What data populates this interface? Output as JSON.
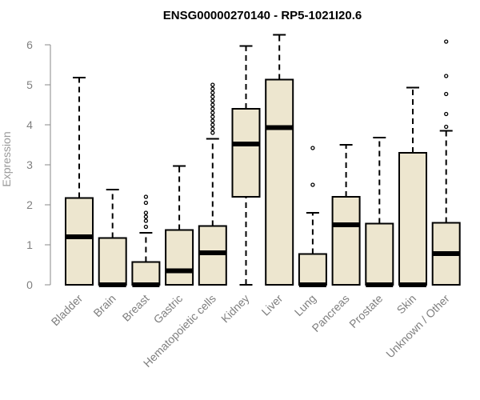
{
  "chart_data": {
    "type": "box",
    "title": "ENSG00000270140 - RP5-1021I20.6",
    "xlabel": "",
    "ylabel": "Expression",
    "ylim": [
      0,
      6.25
    ],
    "yticks": [
      0,
      1,
      2,
      3,
      4,
      5,
      6
    ],
    "grid": false,
    "legend": "none",
    "colors": {
      "box_fill": "#ede6cf",
      "stroke": "#000000",
      "axis": "#8a8a8a",
      "ticks": "#7f7f7f"
    },
    "categories": [
      "Bladder",
      "Brain",
      "Breast",
      "Gastric",
      "Hematopoietic cells",
      "Kidney",
      "Liver",
      "Lung",
      "Pancreas",
      "Prostate",
      "Skin",
      "Unknown / Other"
    ],
    "boxes": [
      {
        "q1": 0,
        "median": 1.2,
        "q3": 2.17,
        "whisker_low": 0,
        "whisker_high": 5.18,
        "outliers": []
      },
      {
        "q1": 0,
        "median": 0,
        "q3": 1.17,
        "whisker_low": 0,
        "whisker_high": 2.38,
        "outliers": []
      },
      {
        "q1": 0,
        "median": 0,
        "q3": 0.57,
        "whisker_low": 0,
        "whisker_high": 1.3,
        "outliers": [
          1.45,
          1.6,
          1.7,
          1.8,
          2.05,
          2.2
        ]
      },
      {
        "q1": 0,
        "median": 0.35,
        "q3": 1.37,
        "whisker_low": 0,
        "whisker_high": 2.97,
        "outliers": []
      },
      {
        "q1": 0,
        "median": 0.8,
        "q3": 1.47,
        "whisker_low": 0,
        "whisker_high": 3.65,
        "outliers": [
          3.8,
          3.9,
          4.0,
          4.1,
          4.2,
          4.3,
          4.4,
          4.5,
          4.6,
          4.7,
          4.8,
          4.9,
          5.0
        ]
      },
      {
        "q1": 2.2,
        "median": 3.52,
        "q3": 4.4,
        "whisker_low": 0,
        "whisker_high": 5.97,
        "outliers": []
      },
      {
        "q1": 0,
        "median": 3.93,
        "q3": 5.13,
        "whisker_low": 0,
        "whisker_high": 6.25,
        "outliers": []
      },
      {
        "q1": 0,
        "median": 0,
        "q3": 0.77,
        "whisker_low": 0,
        "whisker_high": 1.8,
        "outliers": [
          2.5,
          3.42
        ]
      },
      {
        "q1": 0,
        "median": 1.5,
        "q3": 2.2,
        "whisker_low": 0,
        "whisker_high": 3.5,
        "outliers": []
      },
      {
        "q1": 0,
        "median": 0,
        "q3": 1.53,
        "whisker_low": 0,
        "whisker_high": 3.68,
        "outliers": []
      },
      {
        "q1": 0,
        "median": 0,
        "q3": 3.3,
        "whisker_low": 0,
        "whisker_high": 4.93,
        "outliers": []
      },
      {
        "q1": 0,
        "median": 0.78,
        "q3": 1.55,
        "whisker_low": 0,
        "whisker_high": 3.85,
        "outliers": [
          3.95,
          4.27,
          4.77,
          5.22,
          6.08
        ]
      }
    ]
  }
}
